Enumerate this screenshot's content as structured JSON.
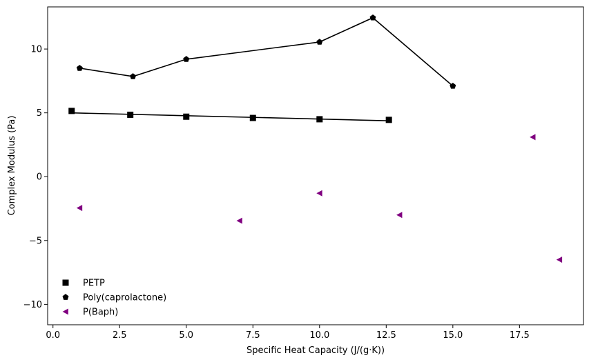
{
  "chart_data": {
    "type": "scatter",
    "title": "",
    "xlabel": "Specific Heat Capacity (J/(g·K))",
    "ylabel": "Complex Modulus (Pa)",
    "xlim": [
      -0.2,
      19.9
    ],
    "ylim": [
      -11.6,
      13.3
    ],
    "xticks": [
      0.0,
      2.5,
      5.0,
      7.5,
      10.0,
      12.5,
      15.0,
      17.5
    ],
    "xtick_labels": [
      "0.0",
      "2.5",
      "5.0",
      "7.5",
      "10.0",
      "12.5",
      "15.0",
      "17.5"
    ],
    "yticks": [
      -10,
      -5,
      0,
      5,
      10
    ],
    "ytick_labels": [
      "−10",
      "−5",
      "0",
      "5",
      "10"
    ],
    "grid": false,
    "legend_position": "lower-left",
    "series": [
      {
        "name": "PETP",
        "marker": "square",
        "color": "#000000",
        "points": [
          [
            0.7,
            5.15
          ],
          [
            2.9,
            4.85
          ],
          [
            5.0,
            4.7
          ],
          [
            7.5,
            4.6
          ],
          [
            10.0,
            4.5
          ],
          [
            12.6,
            4.45
          ]
        ],
        "fit_line": {
          "x": [
            0.7,
            12.6
          ],
          "y": [
            5.0,
            4.38
          ],
          "color": "#000000"
        }
      },
      {
        "name": "Poly(caprolactone)",
        "marker": "pentagon",
        "color": "#000000",
        "points": [
          [
            1.0,
            8.5
          ],
          [
            3.0,
            7.85
          ],
          [
            5.0,
            9.2
          ],
          [
            10.0,
            10.55
          ],
          [
            12.0,
            12.45
          ],
          [
            15.0,
            7.1
          ]
        ],
        "connect": true
      },
      {
        "name": "P(Baph)",
        "marker": "triangle-left",
        "color": "#800080",
        "points": [
          [
            1.0,
            -2.45
          ],
          [
            7.0,
            -3.45
          ],
          [
            10.0,
            -1.3
          ],
          [
            13.0,
            -3.0
          ],
          [
            18.0,
            3.1
          ],
          [
            19.0,
            -6.5
          ]
        ]
      }
    ]
  }
}
